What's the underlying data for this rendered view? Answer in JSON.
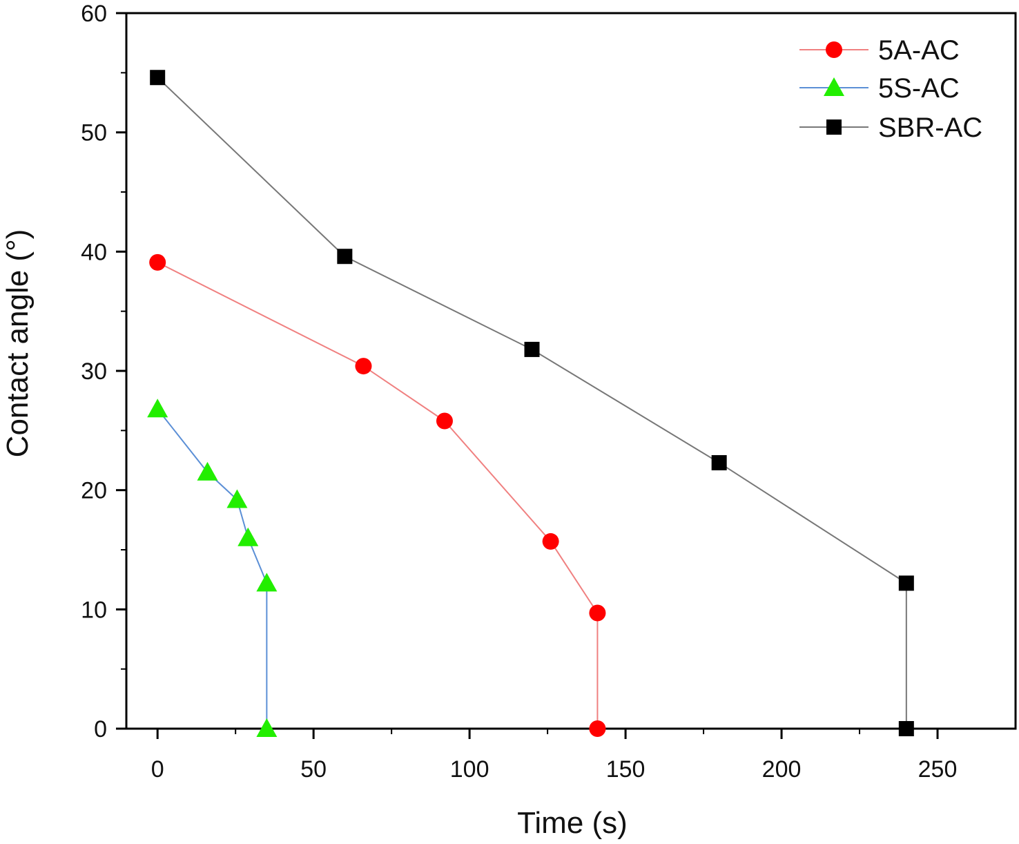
{
  "chart_data": {
    "type": "line",
    "title": "",
    "xlabel": "Time (s)",
    "ylabel": "Contact angle (°)",
    "xlim": [
      -10,
      275
    ],
    "ylim": [
      0,
      60
    ],
    "xticks": [
      0,
      50,
      100,
      150,
      200,
      250
    ],
    "xticks_minor": [
      25,
      75,
      125,
      175,
      225
    ],
    "yticks": [
      0,
      10,
      20,
      30,
      40,
      50,
      60
    ],
    "yticks_minor": [
      5,
      15,
      25,
      35,
      45,
      55
    ],
    "grid": false,
    "legend_position": "top-right",
    "series": [
      {
        "name": "5A-AC",
        "marker": "circle",
        "marker_color": "#ff0000",
        "line_color": "#f08080",
        "x": [
          0,
          66,
          92,
          126,
          141,
          141
        ],
        "y": [
          39.1,
          30.4,
          25.8,
          15.7,
          9.7,
          0
        ]
      },
      {
        "name": "5S-AC",
        "marker": "triangle",
        "marker_color": "#22ee00",
        "line_color": "#5b8fd6",
        "x": [
          0,
          16,
          25.5,
          29,
          35,
          35
        ],
        "y": [
          26.8,
          21.5,
          19.2,
          16.0,
          12.2,
          0
        ]
      },
      {
        "name": "SBR-AC",
        "marker": "square",
        "marker_color": "#000000",
        "line_color": "#777777",
        "x": [
          0,
          60,
          120,
          180,
          240,
          240
        ],
        "y": [
          54.6,
          39.6,
          31.8,
          22.3,
          12.2,
          0
        ]
      }
    ]
  }
}
